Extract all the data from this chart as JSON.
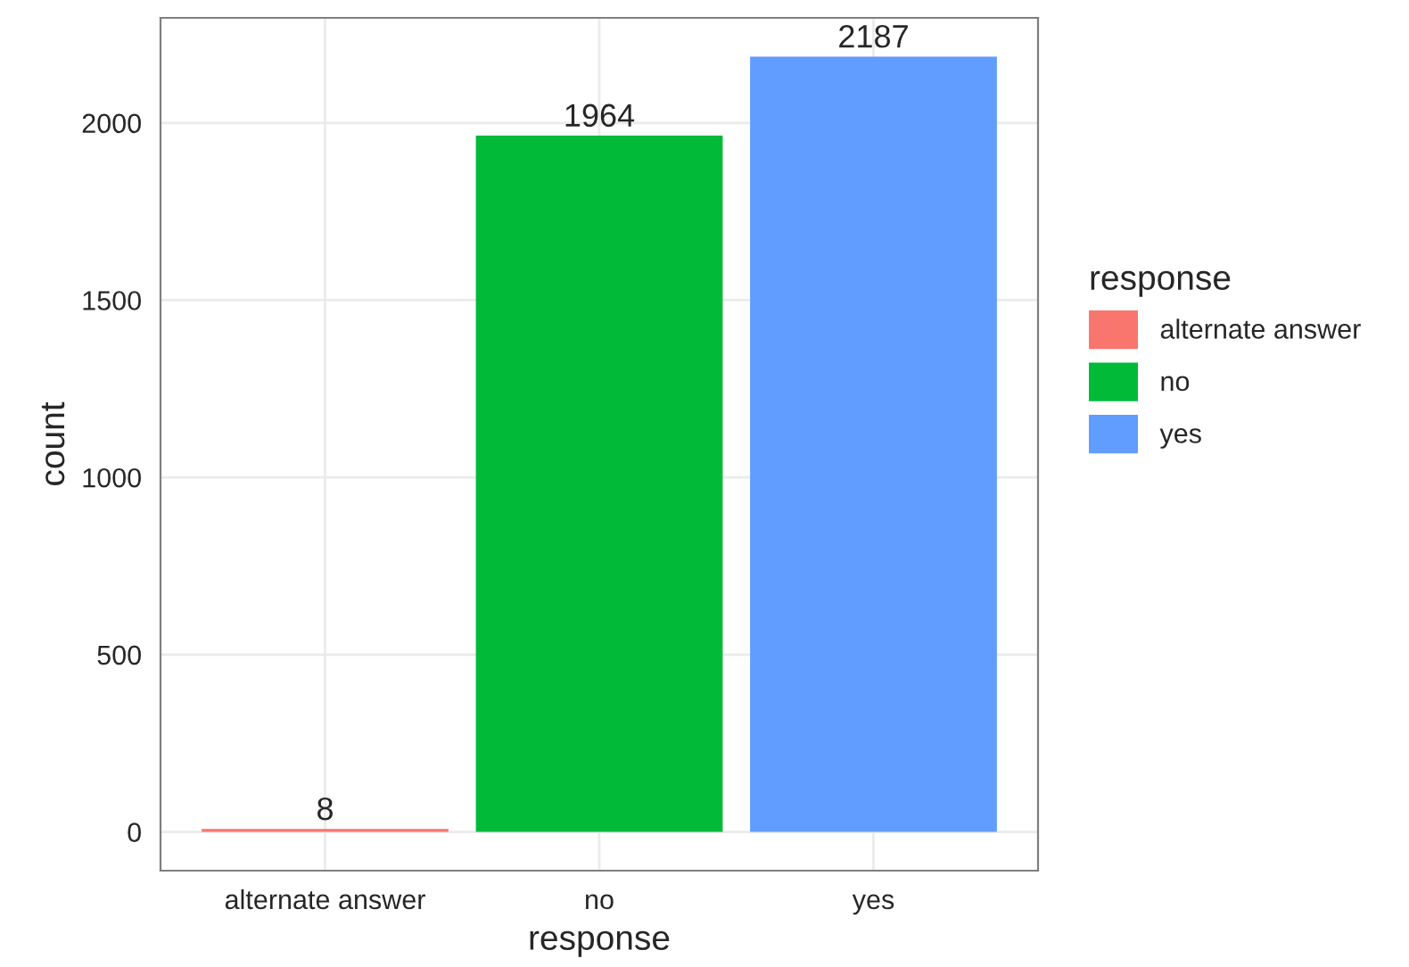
{
  "chart_data": {
    "type": "bar",
    "xlabel": "response",
    "ylabel": "count",
    "legend_title": "response",
    "categories": [
      "alternate answer",
      "no",
      "yes"
    ],
    "series": [
      {
        "name": "alternate answer",
        "color": "#f8766d",
        "values": [
          8,
          null,
          null
        ]
      },
      {
        "name": "no",
        "color": "#00ba38",
        "values": [
          null,
          1964,
          null
        ]
      },
      {
        "name": "yes",
        "color": "#619cff",
        "values": [
          null,
          null,
          2187
        ]
      }
    ],
    "ylim": [
      -109.35,
      2296.35
    ],
    "yticks": [
      0,
      500,
      1000,
      1500,
      2000
    ],
    "grid": true,
    "legend": "right",
    "data_labels": true
  }
}
